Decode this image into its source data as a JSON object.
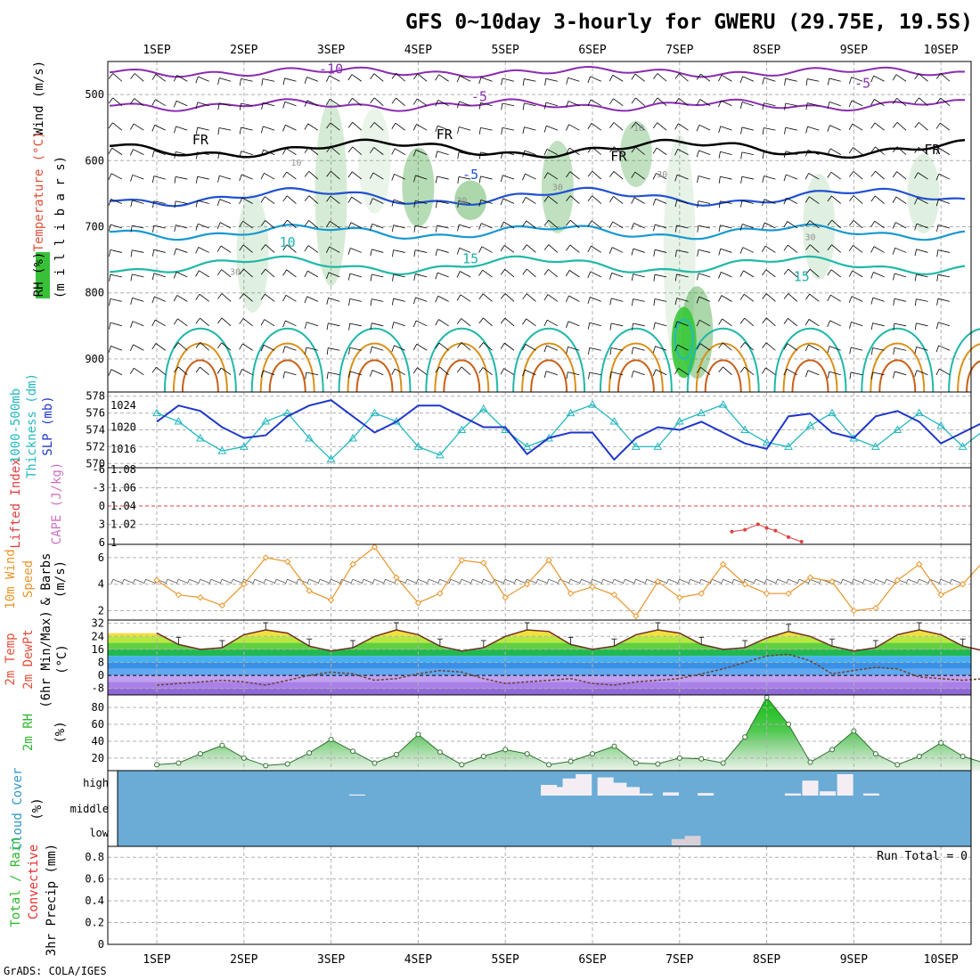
{
  "header": {
    "title": "GFS 0~10day 3-hourly for GWERU (29.75E, 19.5S)",
    "credit": "GrADS: COLA/IGES"
  },
  "colors": {
    "temperature": "#e0503a",
    "rh": "#2e9a2e",
    "wind": "#000000",
    "thickness": "#24b8c0",
    "slp": "#2036c8",
    "lifted_index": "#e04040",
    "cape": "#d070c0",
    "wind10m": "#e8962a",
    "rh2m": "#2eb82e",
    "cloud_bg": "#6aacd6",
    "cloud_fill": "#f4eef4",
    "precip_total": "#2eb82e",
    "precip_convective": "#e83030"
  },
  "chart_data": [
    {
      "type": "line",
      "panel": "upper_air",
      "x_dates": [
        "1SEP",
        "2SEP",
        "3SEP",
        "4SEP",
        "5SEP",
        "6SEP",
        "7SEP",
        "8SEP",
        "9SEP",
        "10SEP"
      ],
      "y_axis": "millibars",
      "yticks": [
        500,
        600,
        700,
        800,
        900
      ],
      "ylim": [
        450,
        950
      ],
      "ylabel_parts": [
        "RH (%)",
        "Temperature (°C)",
        "Wind (m/s)"
      ],
      "ylabel2": "(m i l l i b a r s)",
      "isotherm_labels": [
        {
          "text": "-10",
          "day": 2.0,
          "p": 468
        },
        {
          "text": "-5",
          "day": 3.7,
          "p": 510
        },
        {
          "text": "-5",
          "day": 8.1,
          "p": 490
        },
        {
          "text": "FR",
          "day": 0.5,
          "p": 575
        },
        {
          "text": "FR",
          "day": 3.3,
          "p": 567
        },
        {
          "text": "FR",
          "day": 5.3,
          "p": 600
        },
        {
          "text": "FR",
          "day": 8.9,
          "p": 590
        },
        {
          "text": "-5",
          "day": 3.6,
          "p": 628
        },
        {
          "text": "10",
          "day": 1.5,
          "p": 730
        },
        {
          "text": "15",
          "day": 3.6,
          "p": 755
        },
        {
          "text": "15",
          "day": 7.4,
          "p": 782
        }
      ],
      "rh_labels": [
        {
          "text": "10",
          "day": 1.6,
          "p": 608
        },
        {
          "text": "-10",
          "day": 5.5,
          "p": 555
        },
        {
          "text": "30",
          "day": 3.5,
          "p": 665
        },
        {
          "text": "30",
          "day": 4.6,
          "p": 645
        },
        {
          "text": "30",
          "day": 5.8,
          "p": 625
        },
        {
          "text": "30",
          "day": 7.5,
          "p": 720
        },
        {
          "text": "30",
          "day": 0.9,
          "p": 773
        }
      ]
    },
    {
      "type": "line",
      "panel": "thickness_slp",
      "ylabel_left": "Thickness (dm)",
      "ylabel_left2": "1000-500mb",
      "ylabel_right": "SLP (mb)",
      "yticks_left": [
        570,
        572,
        574,
        576,
        578
      ],
      "yticks_right": [
        1016,
        1020,
        1024
      ],
      "ylim_left": [
        569.5,
        578.5
      ],
      "ylim_right": [
        1012.5,
        1026.5
      ],
      "series": [
        {
          "name": "Thickness (dm)",
          "x": [
            0,
            0.25,
            0.5,
            0.75,
            1,
            1.25,
            1.5,
            1.75,
            2,
            2.25,
            2.5,
            2.75,
            3,
            3.25,
            3.5,
            3.75,
            4,
            4.25,
            4.5,
            4.75,
            5,
            5.25,
            5.5,
            5.75,
            6,
            6.25,
            6.5,
            6.75,
            7,
            7.25,
            7.5,
            7.75,
            8,
            8.25,
            8.5,
            8.75,
            9,
            9.25,
            9.5,
            9.75,
            10
          ],
          "values": [
            576,
            575,
            573,
            571.5,
            572,
            575,
            576,
            573,
            570.5,
            573,
            576,
            575,
            572,
            571,
            574,
            576.5,
            574,
            572,
            573,
            576,
            577,
            575,
            572,
            572,
            575,
            576,
            577,
            574,
            572.5,
            572,
            574.5,
            576,
            573,
            572,
            574,
            576,
            574.5,
            572,
            574,
            576,
            573
          ]
        },
        {
          "name": "SLP (mb)",
          "x": [
            0,
            0.25,
            0.5,
            0.75,
            1,
            1.25,
            1.5,
            1.75,
            2,
            2.25,
            2.5,
            2.75,
            3,
            3.25,
            3.5,
            3.75,
            4,
            4.25,
            4.5,
            4.75,
            5,
            5.25,
            5.5,
            5.75,
            6,
            6.25,
            6.5,
            6.75,
            7,
            7.25,
            7.5,
            7.75,
            8,
            8.25,
            8.5,
            8.75,
            9,
            9.25,
            9.5,
            9.75,
            10
          ],
          "values": [
            1021,
            1024,
            1023,
            1020,
            1018,
            1018.5,
            1022,
            1024,
            1025,
            1022,
            1019,
            1021,
            1024,
            1024,
            1022,
            1020,
            1020,
            1015,
            1018,
            1019,
            1019,
            1014,
            1018,
            1020,
            1019.5,
            1021,
            1019,
            1017,
            1016,
            1022,
            1022.5,
            1019,
            1018,
            1022,
            1023,
            1021,
            1017,
            1019,
            1021,
            1021,
            1021
          ]
        }
      ]
    },
    {
      "type": "line",
      "panel": "stability",
      "ylabel_left": "Lifted Index",
      "ylabel_right": "CAPE (J/kg)",
      "yticks_left": [
        "-6",
        "-3",
        "0",
        "3",
        "6"
      ],
      "yticks_right": [
        1,
        1.02,
        1.04,
        1.06,
        1.08
      ],
      "ylim_right": [
        1,
        1.08
      ],
      "series": [
        {
          "name": "CAPE (J/kg)",
          "x": [
            6.6,
            6.75,
            6.9,
            7.0,
            7.1,
            7.25,
            7.4
          ],
          "values": [
            1.012,
            1.014,
            1.02,
            1.016,
            1.013,
            1.006,
            1.001
          ]
        }
      ]
    },
    {
      "type": "line",
      "panel": "wind10m",
      "ylabel": "10m Wind Speed & Barbs (m/s)",
      "ylabel_parts": [
        "10m Wind",
        "Speed",
        "& Barbs"
      ],
      "yunit": "(m/s)",
      "yticks": [
        2,
        4,
        6
      ],
      "ylim": [
        1.3,
        7.0
      ],
      "series": [
        {
          "name": "10m Wind Speed",
          "x": [
            0,
            0.25,
            0.5,
            0.75,
            1,
            1.25,
            1.5,
            1.75,
            2,
            2.25,
            2.5,
            2.75,
            3,
            3.25,
            3.5,
            3.75,
            4,
            4.25,
            4.5,
            4.75,
            5,
            5.25,
            5.5,
            5.75,
            6,
            6.25,
            6.5,
            6.75,
            7,
            7.25,
            7.5,
            7.75,
            8,
            8.25,
            8.5,
            8.75,
            9,
            9.25,
            9.5,
            9.75,
            10
          ],
          "values": [
            4.3,
            3.2,
            3.0,
            2.4,
            4.0,
            6.0,
            5.7,
            3.5,
            2.8,
            5.5,
            6.8,
            4.5,
            2.6,
            3.3,
            5.8,
            5.6,
            3.0,
            4.0,
            5.8,
            3.3,
            3.8,
            3.2,
            1.6,
            4.2,
            3.0,
            3.3,
            5.5,
            4.0,
            3.3,
            3.3,
            4.5,
            4.2,
            2.0,
            2.2,
            4.3,
            5.5,
            3.2,
            4.0,
            5.8,
            4.5,
            4.2
          ]
        }
      ]
    },
    {
      "type": "line",
      "panel": "temp2m",
      "ylabel_parts": [
        "2m Temp",
        "2m DewPt",
        "(6hr Min/Max)"
      ],
      "yunit": "(°C)",
      "yticks": [
        -8,
        0,
        8,
        16,
        24,
        32
      ],
      "ylim": [
        -12,
        34
      ],
      "series": [
        {
          "name": "2m Temp",
          "x": [
            0,
            0.25,
            0.5,
            0.75,
            1,
            1.25,
            1.5,
            1.75,
            2,
            2.25,
            2.5,
            2.75,
            3,
            3.25,
            3.5,
            3.75,
            4,
            4.25,
            4.5,
            4.75,
            5,
            5.25,
            5.5,
            5.75,
            6,
            6.25,
            6.5,
            6.75,
            7,
            7.25,
            7.5,
            7.75,
            8,
            8.25,
            8.5,
            8.75,
            9,
            9.25,
            9.5,
            9.75,
            10
          ],
          "values": [
            26,
            19,
            16,
            17,
            25,
            28,
            26,
            18,
            15,
            17,
            24,
            28,
            25,
            18,
            15,
            17,
            24,
            28,
            27,
            19,
            16,
            18,
            25,
            28,
            26,
            19,
            16,
            17,
            23,
            27,
            24,
            18,
            15,
            17,
            25,
            28,
            25,
            18,
            15,
            17,
            22
          ]
        },
        {
          "name": "2m DewPt",
          "x": [
            0,
            0.25,
            0.5,
            0.75,
            1,
            1.25,
            1.5,
            1.75,
            2,
            2.25,
            2.5,
            2.75,
            3,
            3.25,
            3.5,
            3.75,
            4,
            4.25,
            4.5,
            4.75,
            5,
            5.25,
            5.5,
            5.75,
            6,
            6.25,
            6.5,
            6.75,
            7,
            7.25,
            7.5,
            7.75,
            8,
            8.25,
            8.5,
            8.75,
            9,
            9.25,
            9.5,
            9.75,
            10
          ],
          "values": [
            -6,
            -5,
            -4,
            -3,
            -4,
            -6,
            -3,
            0,
            2,
            1,
            -3,
            -2,
            1,
            3,
            2,
            -2,
            -5,
            -4,
            -3,
            -2,
            -5,
            -6,
            -4,
            -3,
            -2,
            1,
            4,
            8,
            12,
            13,
            9,
            1,
            3,
            5,
            4,
            -1,
            -2,
            -3,
            -2,
            0,
            1
          ]
        }
      ]
    },
    {
      "type": "area",
      "panel": "rh2m",
      "ylabel": "2m RH",
      "yunit": "(%)",
      "yticks": [
        20,
        40,
        60,
        80
      ],
      "ylim": [
        5,
        95
      ],
      "series": [
        {
          "name": "2m RH",
          "x": [
            0,
            0.25,
            0.5,
            0.75,
            1,
            1.25,
            1.5,
            1.75,
            2,
            2.25,
            2.5,
            2.75,
            3,
            3.25,
            3.5,
            3.75,
            4,
            4.25,
            4.5,
            4.75,
            5,
            5.25,
            5.5,
            5.75,
            6,
            6.25,
            6.5,
            6.75,
            7,
            7.25,
            7.5,
            7.75,
            8,
            8.25,
            8.5,
            8.75,
            9,
            9.25,
            9.5,
            9.75,
            10
          ],
          "values": [
            12,
            14,
            25,
            35,
            20,
            11,
            13,
            26,
            42,
            28,
            14,
            24,
            48,
            27,
            12,
            22,
            30,
            25,
            12,
            16,
            25,
            34,
            14,
            13,
            20,
            19,
            14,
            45,
            92,
            60,
            15,
            30,
            52,
            25,
            12,
            22,
            38,
            22,
            14,
            22,
            42
          ]
        }
      ]
    },
    {
      "type": "bar",
      "panel": "cloud_cover",
      "ylabel": "Cloud Cover (%)",
      "ylabel_parts": [
        "Cloud Cover",
        "(%)"
      ],
      "levels": [
        "high",
        "middle",
        "low"
      ],
      "high_segments": [
        {
          "day": 2.3,
          "value": 5
        },
        {
          "day": 4.5,
          "value": 50
        },
        {
          "day": 4.6,
          "value": 40
        },
        {
          "day": 4.75,
          "value": 80
        },
        {
          "day": 4.9,
          "value": 100
        },
        {
          "day": 5.15,
          "value": 85
        },
        {
          "day": 5.3,
          "value": 60
        },
        {
          "day": 5.45,
          "value": 40
        },
        {
          "day": 5.6,
          "value": 10
        },
        {
          "day": 5.9,
          "value": 15
        },
        {
          "day": 6.3,
          "value": 12
        },
        {
          "day": 7.3,
          "value": 10
        },
        {
          "day": 7.5,
          "value": 70
        },
        {
          "day": 7.7,
          "value": 20
        },
        {
          "day": 7.9,
          "value": 100
        },
        {
          "day": 8.2,
          "value": 10
        }
      ],
      "low_segments": [
        {
          "day": 6.0,
          "value": 30
        },
        {
          "day": 6.15,
          "value": 45
        }
      ]
    },
    {
      "type": "bar",
      "panel": "precip",
      "ylabel_parts": [
        "Total / Rain",
        "Convective",
        "3hr Precip (mm)"
      ],
      "annotation": "Run Total = 0",
      "yticks": [
        0,
        0.2,
        0.4,
        0.6,
        0.8
      ],
      "ylim": [
        0,
        0.9
      ],
      "values": []
    }
  ]
}
